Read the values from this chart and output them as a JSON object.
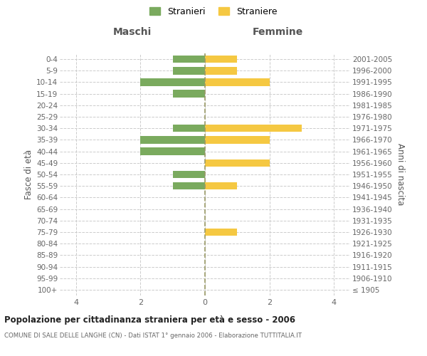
{
  "age_groups": [
    "100+",
    "95-99",
    "90-94",
    "85-89",
    "80-84",
    "75-79",
    "70-74",
    "65-69",
    "60-64",
    "55-59",
    "50-54",
    "45-49",
    "40-44",
    "35-39",
    "30-34",
    "25-29",
    "20-24",
    "15-19",
    "10-14",
    "5-9",
    "0-4"
  ],
  "birth_years": [
    "≤ 1905",
    "1906-1910",
    "1911-1915",
    "1916-1920",
    "1921-1925",
    "1926-1930",
    "1931-1935",
    "1936-1940",
    "1941-1945",
    "1946-1950",
    "1951-1955",
    "1956-1960",
    "1961-1965",
    "1966-1970",
    "1971-1975",
    "1976-1980",
    "1981-1985",
    "1986-1990",
    "1991-1995",
    "1996-2000",
    "2001-2005"
  ],
  "maschi": [
    0,
    0,
    0,
    0,
    0,
    0,
    0,
    0,
    0,
    1,
    1,
    0,
    2,
    2,
    1,
    0,
    0,
    1,
    2,
    1,
    1
  ],
  "femmine": [
    0,
    0,
    0,
    0,
    0,
    1,
    0,
    0,
    0,
    1,
    0,
    2,
    0,
    2,
    3,
    0,
    0,
    0,
    2,
    1,
    1
  ],
  "color_maschi": "#7aaa5e",
  "color_femmine": "#f5c842",
  "color_center_line": "#999966",
  "title1": "Popolazione per cittadinanza straniera per età e sesso - 2006",
  "title2": "COMUNE DI SALE DELLE LANGHE (CN) - Dati ISTAT 1° gennaio 2006 - Elaborazione TUTTITALIA.IT",
  "header_left": "Maschi",
  "header_right": "Femmine",
  "ylabel_left": "Fasce di età",
  "ylabel_right": "Anni di nascita",
  "legend_maschi": "Stranieri",
  "legend_femmine": "Straniere",
  "xlim": 4.5,
  "background_color": "#ffffff",
  "grid_color": "#cccccc"
}
